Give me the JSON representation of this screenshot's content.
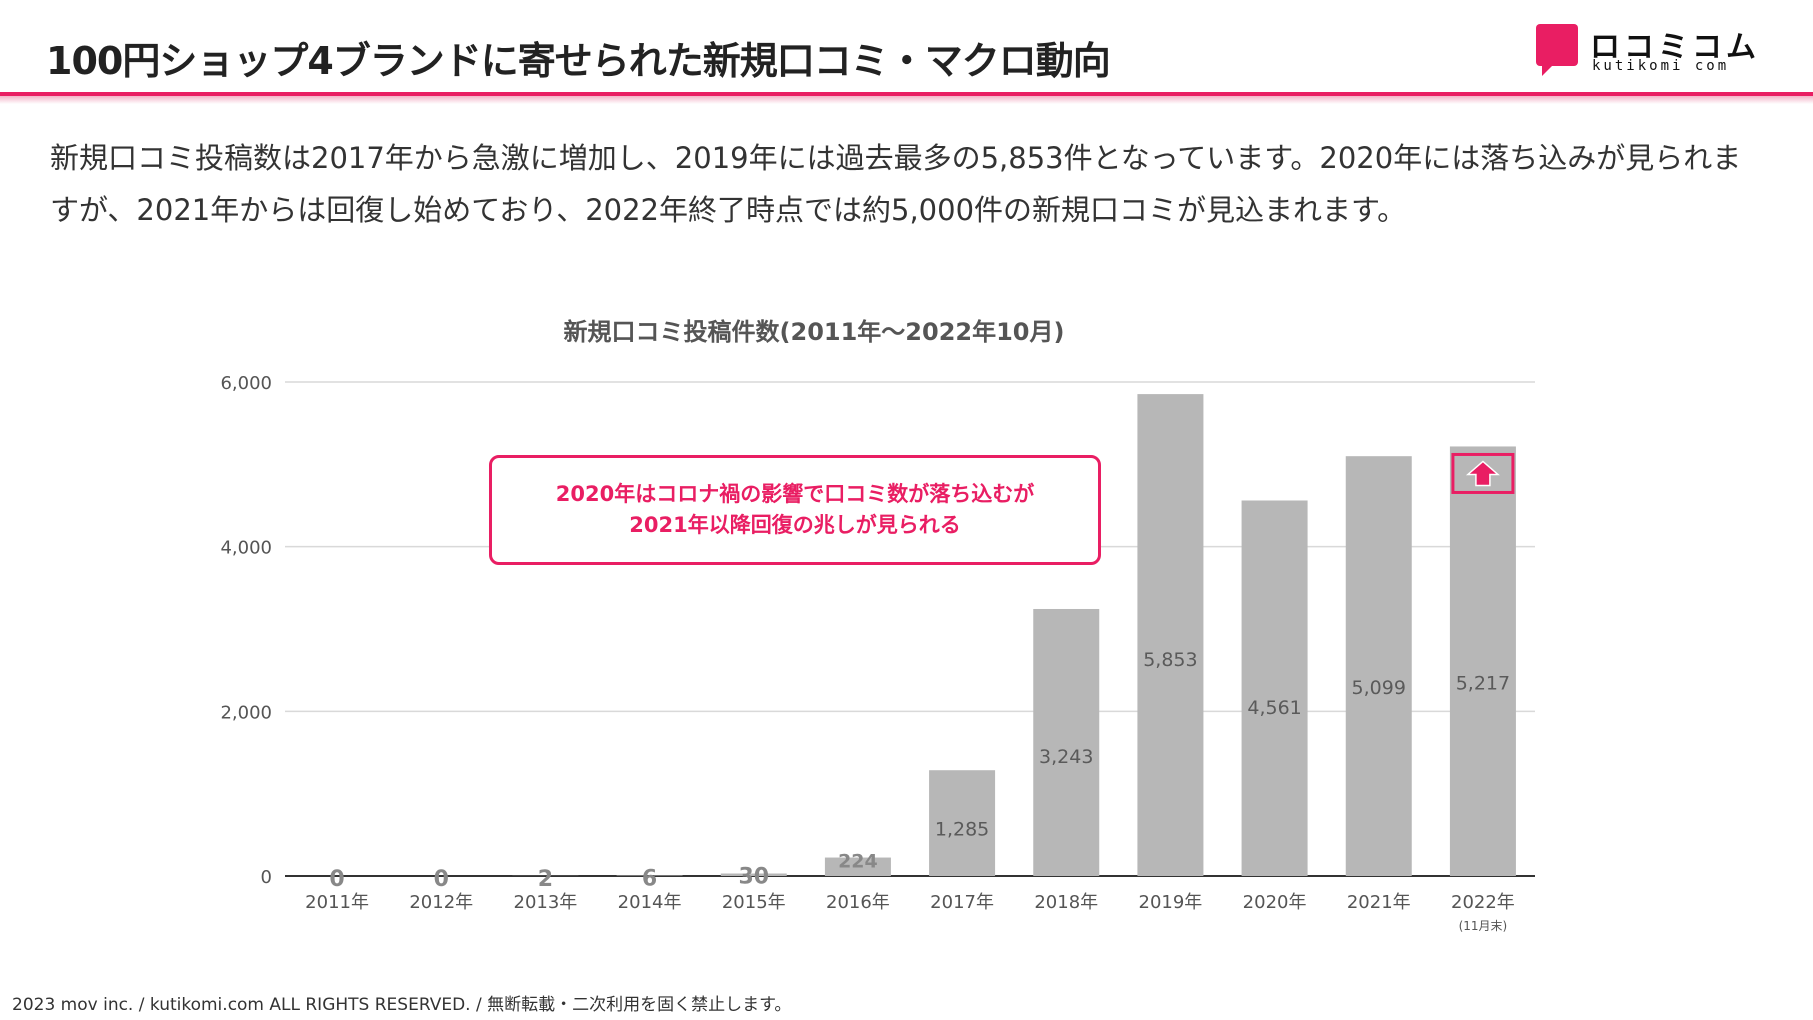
{
  "header": {
    "title": "100円ショップ4ブランドに寄せられた新規口コミ・マクロ動向",
    "logo_jp": "ロコミコム",
    "logo_en": "kutikomi com"
  },
  "description": "新規口コミ投稿数は2017年から急激に増加し、2019年には過去最多の5,853件となっています。2020年には落ち込みが見られますが、2021年からは回復し始めており、2022年終了時点では約5,000件の新規口コミが見込まれます。",
  "callout": {
    "line1": "2020年はコロナ禍の影響で口コミ数が落ち込むが",
    "line2": "2021年以降回復の兆しが見られる"
  },
  "footer": "2023 mov inc. / kutikomi.com ALL RIGHTS RESERVED. / 無断転載・二次利用を固く禁止します。",
  "colors": {
    "accent": "#e91e63",
    "bar": "#b7b7b7",
    "grid": "#d9d9d9"
  },
  "chart_data": {
    "type": "bar",
    "title": "新規口コミ投稿件数(2011年～2022年10月)",
    "categories": [
      "2011年",
      "2012年",
      "2013年",
      "2014年",
      "2015年",
      "2016年",
      "2017年",
      "2018年",
      "2019年",
      "2020年",
      "2021年",
      "2022年"
    ],
    "values": [
      0,
      0,
      2,
      6,
      30,
      224,
      1285,
      3243,
      5853,
      4561,
      5099,
      5217
    ],
    "value_labels": [
      "0",
      "0",
      "2",
      "6",
      "30",
      "224",
      "1,285",
      "3,243",
      "5,853",
      "4,561",
      "5,099",
      "5,217"
    ],
    "yticks": [
      0,
      2000,
      4000,
      6000
    ],
    "ytick_labels": [
      "0",
      "2,000",
      "4,000",
      "6,000"
    ],
    "ylim": [
      0,
      6000
    ],
    "xlabel": "",
    "ylabel": "",
    "last_category_note": "(11月末)",
    "highlight_index": 11,
    "highlight_icon": "up-arrow-icon"
  }
}
